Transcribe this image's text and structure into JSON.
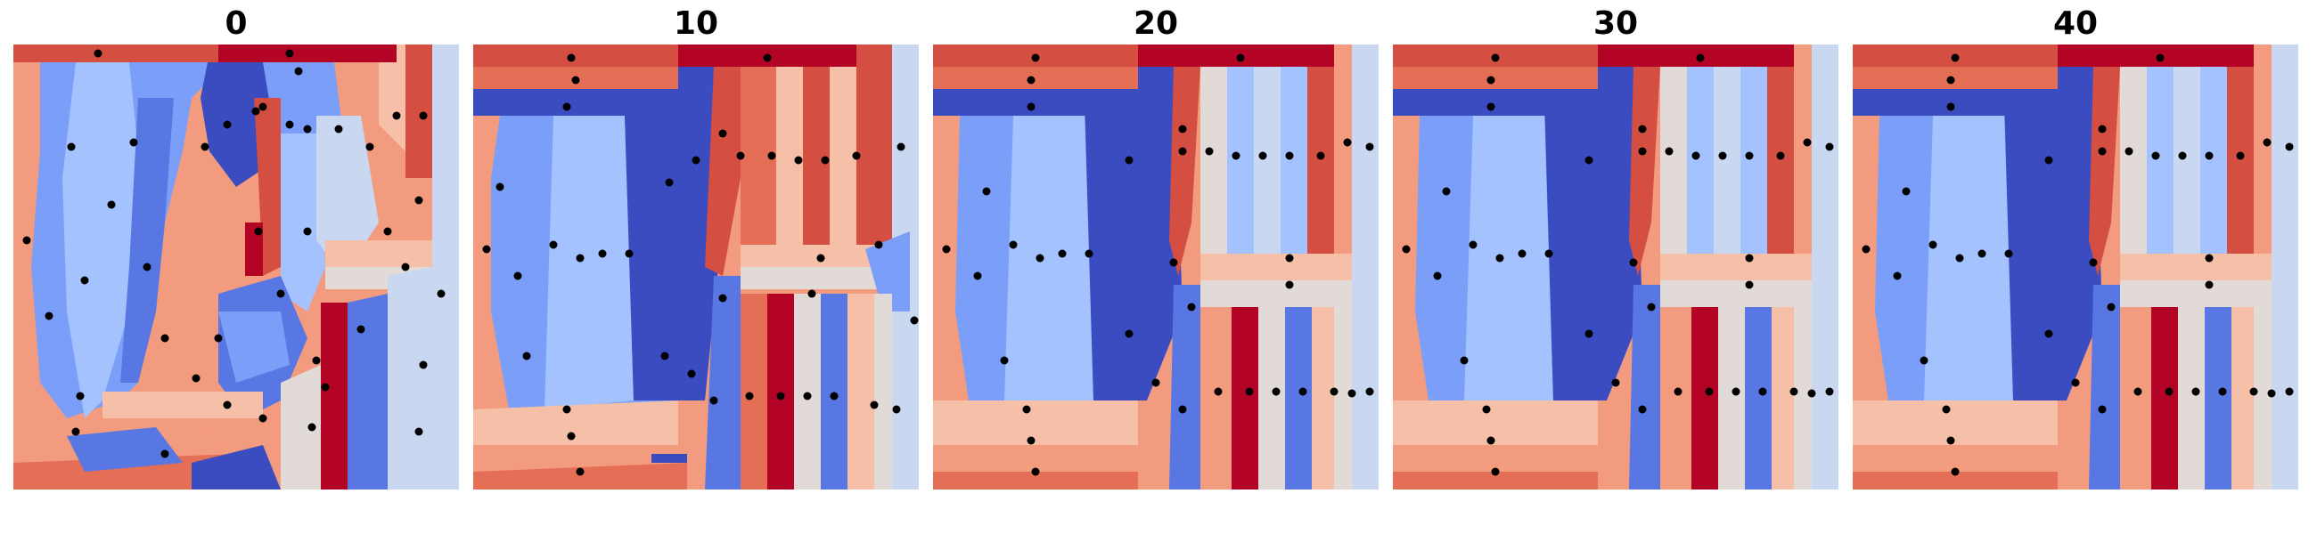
{
  "panels": [
    {
      "title": "0"
    },
    {
      "title": "10"
    },
    {
      "title": "20"
    },
    {
      "title": "30"
    },
    {
      "title": "40"
    }
  ],
  "colors": {
    "dark_blue": "#3b4cc0",
    "blue": "#5977e3",
    "mid_blue": "#7b9ff9",
    "light_blue": "#a3c2fe",
    "pale_blue": "#c9d7f0",
    "neutral": "#e1dad6",
    "peach": "#f5c0a7",
    "salmon": "#f39b7e",
    "coral": "#e46e56",
    "red": "#d44e41",
    "dark_red": "#b40426",
    "point": "#000000"
  }
}
